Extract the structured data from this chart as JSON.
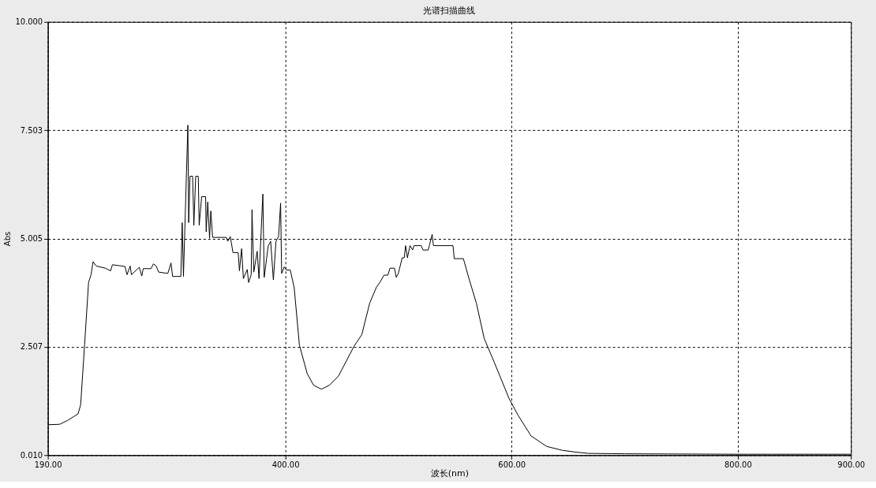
{
  "chart_data": {
    "type": "line",
    "title": "光谱扫描曲线",
    "xlabel": "波长(nm)",
    "ylabel": "Abs",
    "xlim": [
      190,
      900
    ],
    "ylim": [
      0.01,
      10.0
    ],
    "xticks": [
      {
        "value": 190,
        "label": "190.00"
      },
      {
        "value": 400,
        "label": "400.00"
      },
      {
        "value": 600,
        "label": "600.00"
      },
      {
        "value": 800,
        "label": "800.00"
      },
      {
        "value": 900,
        "label": "900.00"
      }
    ],
    "yticks": [
      {
        "value": 0.01,
        "label": "0.010"
      },
      {
        "value": 2.507,
        "label": "2.507"
      },
      {
        "value": 5.005,
        "label": "5.005"
      },
      {
        "value": 7.503,
        "label": "7.503"
      },
      {
        "value": 10.0,
        "label": "10.000"
      }
    ],
    "grid": true,
    "line_style": "solid",
    "marker": "none",
    "series": [
      {
        "color": "#000000",
        "x": [
          190,
          200.4,
          207.5,
          216.7,
          219,
          222.5,
          226,
          228.2,
          230,
          232.8,
          240.9,
          245.5,
          247.1,
          258.2,
          260,
          262.8,
          263.9,
          270.8,
          273.1,
          274.3,
          281.2,
          283.4,
          285.8,
          288,
          296.1,
          298.9,
          300.3,
          307.6,
          308.8,
          309.9,
          313.8,
          314.5,
          315.7,
          318,
          319.1,
          320.7,
          323,
          323.8,
          326,
          329.5,
          330,
          331.4,
          333,
          334.1,
          335.7,
          347.9,
          349,
          351.3,
          353.7,
          358.3,
          359.4,
          361.3,
          362.9,
          366.3,
          367.5,
          369.8,
          370.5,
          372.1,
          375.1,
          376.7,
          380.1,
          381.3,
          384.8,
          387,
          389.4,
          391.7,
          394,
          395.8,
          396.7,
          399,
          400.8,
          404.3,
          407.8,
          412.4,
          419.3,
          425,
          431.9,
          438.8,
          446.9,
          460.7,
          467.6,
          474.5,
          480.3,
          483.7,
          487.2,
          490.6,
          492.5,
          496.5,
          498,
          499.9,
          503.3,
          505.1,
          506.3,
          507.9,
          510.2,
          512.5,
          513.7,
          520.1,
          521.7,
          526.3,
          527.5,
          529.8,
          530.9,
          548.2,
          549.3,
          557.4,
          562,
          568.9,
          575.8,
          585,
          597.7,
          605.7,
          617.3,
          631.1,
          644.9,
          656.4,
          667.9,
          700,
          800,
          900
        ],
        "values": [
          0.71,
          0.72,
          0.81,
          0.96,
          1.17,
          2.55,
          3.99,
          4.17,
          4.47,
          4.37,
          4.32,
          4.26,
          4.4,
          4.36,
          4.17,
          4.37,
          4.17,
          4.34,
          4.14,
          4.31,
          4.31,
          4.42,
          4.37,
          4.23,
          4.2,
          4.44,
          4.13,
          4.13,
          5.37,
          4.13,
          7.62,
          5.37,
          6.44,
          6.44,
          5.31,
          6.44,
          6.44,
          5.31,
          5.97,
          5.97,
          5.16,
          5.85,
          5.01,
          5.64,
          5.03,
          5.03,
          4.94,
          5.05,
          4.68,
          4.68,
          4.26,
          4.77,
          4.08,
          4.29,
          3.99,
          4.17,
          5.67,
          4.23,
          4.71,
          4.08,
          6.03,
          4.11,
          4.83,
          4.94,
          4.05,
          4.94,
          5.05,
          5.82,
          4.2,
          4.35,
          4.28,
          4.28,
          3.87,
          2.55,
          1.89,
          1.62,
          1.53,
          1.62,
          1.83,
          2.52,
          2.79,
          3.51,
          3.87,
          4.0,
          4.16,
          4.16,
          4.32,
          4.32,
          4.11,
          4.2,
          4.56,
          4.56,
          4.84,
          4.56,
          4.84,
          4.74,
          4.84,
          4.84,
          4.74,
          4.74,
          4.86,
          5.1,
          4.84,
          4.84,
          4.54,
          4.54,
          4.11,
          3.51,
          2.7,
          2.13,
          1.32,
          0.93,
          0.45,
          0.21,
          0.12,
          0.08,
          0.05,
          0.04,
          0.03,
          0.03
        ]
      }
    ]
  }
}
